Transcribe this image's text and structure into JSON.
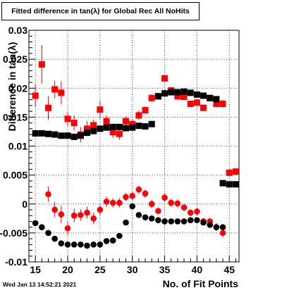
{
  "title": "Fitted difference in tan(λ) for Global Rec All NoHits",
  "footer_timestamp": "Wed Jan 13 14:52:21 2021",
  "chart_data": {
    "type": "scatter",
    "title": "Fitted difference in tan(λ) for Global Rec All NoHits",
    "xlabel": "No. of Fit Points",
    "ylabel": "Difference in tan(λ)",
    "xlim": [
      14,
      46.5
    ],
    "ylim": [
      -0.01,
      0.03
    ],
    "x_ticks": [
      15,
      20,
      25,
      30,
      35,
      40,
      45
    ],
    "y_ticks": [
      -0.01,
      -0.005,
      0,
      0.005,
      0.01,
      0.015,
      0.02,
      0.025,
      0.03
    ],
    "y_tick_labels": [
      "-0.01",
      "-0.005",
      "0",
      "0.005",
      "0.01",
      "0.015",
      "0.02",
      "0.025",
      "0.03"
    ],
    "grid": true,
    "colors": {
      "red": "#ff0000",
      "black": "#000000"
    },
    "series": [
      {
        "marker": "square",
        "color": "#ff0000",
        "x": [
          15,
          16,
          17,
          18,
          19,
          20,
          21,
          22,
          23,
          24,
          25,
          26,
          27,
          28,
          29,
          30,
          31,
          32,
          33,
          34,
          35,
          36,
          37,
          38,
          39,
          40,
          41,
          42,
          43,
          44,
          45,
          46
        ],
        "y": [
          0.0187,
          0.0241,
          0.0166,
          0.0198,
          0.0192,
          0.0147,
          0.014,
          0.012,
          0.013,
          0.0136,
          0.0163,
          0.0143,
          0.0124,
          0.0121,
          0.0143,
          0.0138,
          0.0153,
          0.0162,
          0.0183,
          0.0186,
          0.0217,
          0.0196,
          0.0186,
          0.0185,
          0.0173,
          0.0175,
          0.0166,
          0.0183,
          0.0173,
          0.0173,
          0.0054,
          0.0056
        ],
        "err": [
          0.002,
          0.0033,
          0.002,
          0.0015,
          0.002,
          0.0012,
          0.0013,
          0.0013,
          0.0013,
          0.001,
          0.0015,
          0.001,
          0.001,
          0.001,
          0.0008,
          0.0008,
          0.0008,
          0.0006,
          0.0007,
          0.0006,
          0.0006,
          0.0006,
          0.0006,
          0.0005,
          0.0005,
          0.0005,
          0.0005,
          0.0006,
          0.0006,
          0.0007,
          0.0004,
          0.0004
        ]
      },
      {
        "marker": "square",
        "color": "#000000",
        "x": [
          15,
          16,
          17,
          18,
          19,
          20,
          21,
          22,
          23,
          24,
          25,
          26,
          27,
          28,
          29,
          30,
          31,
          32,
          33,
          34,
          35,
          36,
          37,
          38,
          39,
          40,
          41,
          42,
          43,
          44,
          45,
          46
        ],
        "y": [
          0.0122,
          0.0122,
          0.0121,
          0.012,
          0.0118,
          0.0118,
          0.0116,
          0.0118,
          0.0123,
          0.0126,
          0.013,
          0.0132,
          0.0133,
          0.0133,
          0.0131,
          0.0132,
          0.0135,
          0.0134,
          0.0138,
          0.0186,
          0.0191,
          0.0193,
          0.0193,
          0.0194,
          0.0192,
          0.0189,
          0.0187,
          0.0183,
          0.0181,
          0.0036,
          0.0034,
          0.0034
        ],
        "err": [
          0,
          0,
          0,
          0,
          0,
          0,
          0,
          0,
          0,
          0,
          0,
          0,
          0,
          0,
          0,
          0,
          0,
          0,
          0,
          0,
          0,
          0,
          0,
          0,
          0,
          0,
          0,
          0,
          0,
          0,
          0,
          0
        ]
      },
      {
        "marker": "circle",
        "color": "#ff0000",
        "x": [
          17,
          18,
          19,
          20,
          21,
          22,
          23,
          24,
          25,
          26,
          27,
          28,
          29,
          30,
          31,
          32,
          33,
          34,
          35,
          36,
          37,
          38,
          39,
          40,
          41,
          42,
          43,
          44
        ],
        "y": [
          0.0017,
          -0.001,
          -0.0018,
          -0.0042,
          -0.002,
          -0.0019,
          -0.0015,
          -0.0025,
          -0.001,
          0.0004,
          0.0002,
          0.0002,
          0.0012,
          0.0014,
          0.0025,
          0.0018,
          0.0,
          -0.0012,
          0.0011,
          0.0002,
          0.0001,
          -0.0006,
          -0.0015,
          -0.0013,
          -0.003,
          -0.003,
          -0.004,
          -0.005
        ],
        "err": [
          0.0013,
          0.0013,
          0.0015,
          0.0012,
          0.0012,
          0.001,
          0.001,
          0.001,
          0.0009,
          0.0009,
          0.0008,
          0.0008,
          0.0007,
          0.0007,
          0.0007,
          0.0007,
          0.0007,
          0.0006,
          0.0007,
          0.0007,
          0.0007,
          0.0006,
          0.0006,
          0.0006,
          0.0006,
          0.0006,
          0.0007,
          0.0008
        ]
      },
      {
        "marker": "circle",
        "color": "#000000",
        "x": [
          15,
          16,
          17,
          18,
          19,
          20,
          21,
          22,
          23,
          24,
          25,
          26,
          27,
          28,
          29,
          30,
          31,
          32,
          33,
          34,
          35,
          36,
          37,
          38,
          39,
          40,
          41,
          42,
          43,
          44
        ],
        "y": [
          -0.0033,
          -0.004,
          -0.005,
          -0.006,
          -0.0068,
          -0.007,
          -0.007,
          -0.007,
          -0.0072,
          -0.007,
          -0.007,
          -0.0064,
          -0.0063,
          -0.0055,
          -0.0032,
          -0.0004,
          -0.0019,
          -0.0023,
          -0.0025,
          -0.0028,
          -0.003,
          -0.003,
          -0.003,
          -0.003,
          -0.0028,
          -0.0028,
          -0.0032,
          -0.0036,
          -0.004,
          -0.004
        ],
        "err": [
          0,
          0,
          0,
          0,
          0,
          0,
          0,
          0,
          0,
          0,
          0,
          0,
          0,
          0,
          0,
          0,
          0,
          0,
          0,
          0,
          0,
          0,
          0,
          0,
          0,
          0,
          0,
          0,
          0,
          0
        ]
      }
    ]
  }
}
